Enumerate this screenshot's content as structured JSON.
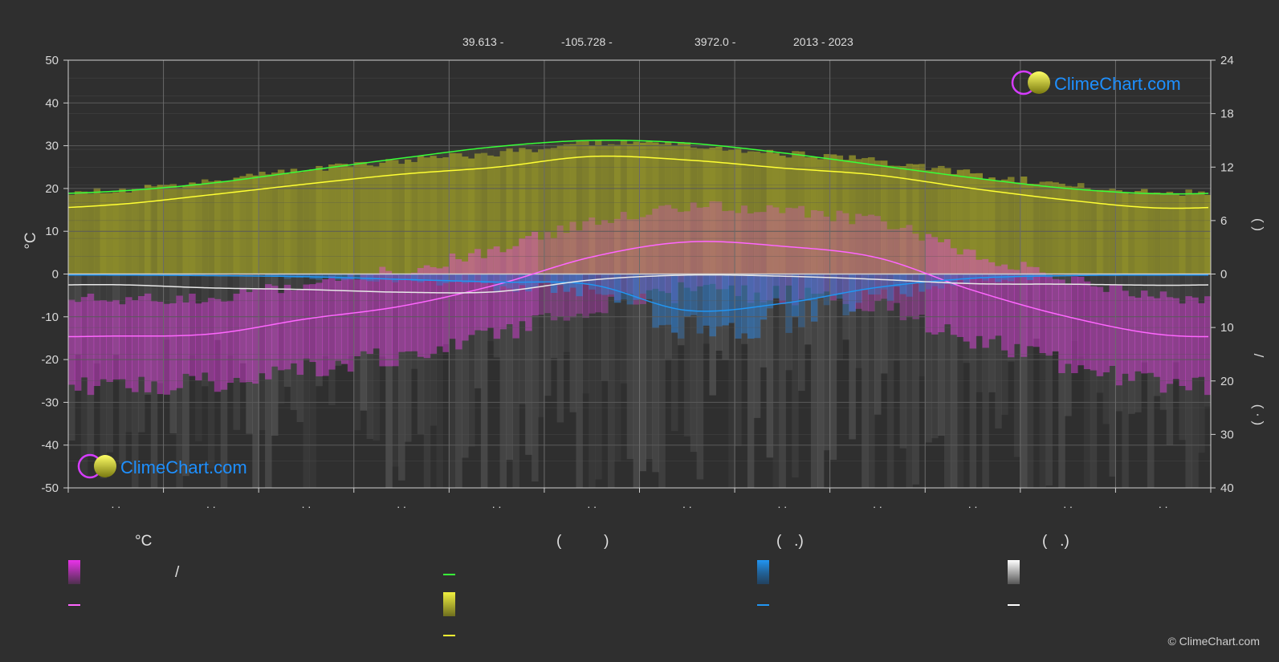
{
  "header": {
    "lat": "39.613 -",
    "lon": "-105.728 -",
    "elevation": "3972.0 -",
    "years": "2013 - 2023"
  },
  "logo_text": "ClimeChart.com",
  "copyright": "© ClimeChart.com",
  "colors": {
    "background": "#2f2f2f",
    "daylight": "#39ff39",
    "sunshine": "#ffff33",
    "temp_mean": "#ff66ff",
    "temp_fill": "#ff33ff",
    "rain": "#2196f3",
    "snow": "#ffffff",
    "logo": "#1e90ff"
  },
  "chart_data": {
    "type": "area",
    "x_months": [
      1,
      2,
      3,
      4,
      5,
      6,
      7,
      8,
      9,
      10,
      11,
      12
    ],
    "x_tick_labels": ". .",
    "left_axis": {
      "label": "°C",
      "ylim": [
        -50,
        50
      ],
      "ticks": [
        50,
        40,
        30,
        20,
        10,
        0,
        -10,
        -20,
        -30,
        -40,
        -50
      ]
    },
    "right_axis_top": {
      "ticks": [
        24,
        18,
        12,
        6,
        0
      ],
      "range": [
        0,
        24
      ],
      "label_fragment": "(   )"
    },
    "right_axis_bottom": {
      "ticks": [
        0,
        10,
        20,
        30,
        40
      ],
      "range": [
        0,
        40
      ],
      "label_fragments": [
        "(   )",
        "/",
        "(  ·  )"
      ]
    },
    "series": [
      {
        "key": "daylight",
        "unit": "hours",
        "values": [
          9.3,
          10.2,
          11.6,
          13.0,
          14.3,
          15.0,
          14.7,
          13.6,
          12.2,
          10.8,
          9.6,
          9.0
        ]
      },
      {
        "key": "sunshine",
        "unit": "hours",
        "values": [
          7.8,
          8.9,
          10.1,
          11.2,
          12.0,
          13.2,
          12.8,
          11.9,
          11.1,
          9.6,
          8.3,
          7.4
        ]
      },
      {
        "key": "temp_mean",
        "unit": "°C",
        "values": [
          -14.5,
          -14.0,
          -10.5,
          -7.5,
          -2.5,
          4.0,
          7.5,
          6.5,
          3.8,
          -3.8,
          -10.0,
          -14.2
        ]
      },
      {
        "key": "rain",
        "unit": "mm",
        "values": [
          0.2,
          0.3,
          0.5,
          1.0,
          1.5,
          2.0,
          6.8,
          5.5,
          2.5,
          0.8,
          0.3,
          0.2
        ]
      },
      {
        "key": "snow",
        "unit": "mm",
        "values": [
          2.0,
          2.6,
          2.9,
          3.4,
          3.3,
          1.1,
          0.2,
          0.4,
          1.0,
          1.8,
          1.9,
          2.1
        ]
      }
    ]
  },
  "legend": {
    "col1_header": "°C",
    "col1_slash": "/",
    "col2_header": "(          )",
    "col3_header": "(   .)",
    "col4_header": "(   .)"
  }
}
